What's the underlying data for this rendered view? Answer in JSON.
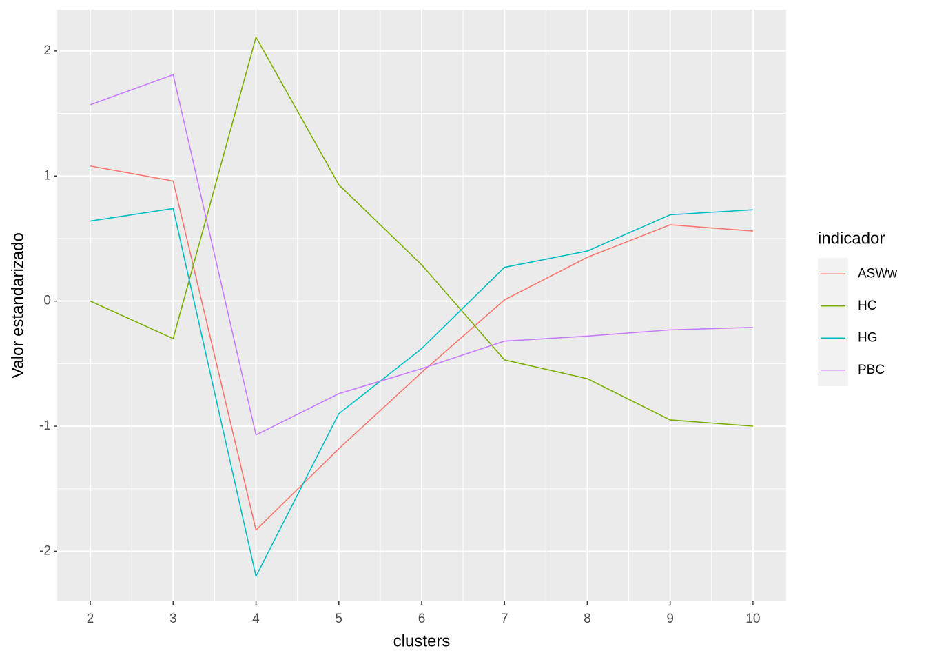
{
  "chart_data": {
    "type": "line",
    "x_label": "clusters",
    "y_label": "Valor estandarizado",
    "legend_title": "indicador",
    "x": [
      2,
      3,
      4,
      5,
      6,
      7,
      8,
      9,
      10
    ],
    "series": [
      {
        "name": "ASWw",
        "color": "#F8766D",
        "values": [
          1.08,
          0.96,
          -1.83,
          -1.18,
          -0.57,
          0.01,
          0.35,
          0.61,
          0.56
        ]
      },
      {
        "name": "HC",
        "color": "#7CAE00",
        "values": [
          0,
          -0.3,
          2.11,
          0.93,
          0.29,
          -0.47,
          -0.62,
          -0.95,
          -1.0
        ]
      },
      {
        "name": "HG",
        "color": "#00BFC4",
        "values": [
          0.64,
          0.74,
          -2.2,
          -0.9,
          -0.38,
          0.27,
          0.4,
          0.69,
          0.73
        ]
      },
      {
        "name": "PBC",
        "color": "#C77CFF",
        "values": [
          1.57,
          1.81,
          -1.07,
          -0.74,
          -0.54,
          -0.32,
          -0.28,
          -0.23,
          -0.21
        ]
      }
    ],
    "xlim": [
      1.6,
      10.4
    ],
    "ylim": [
      -2.4,
      2.33
    ],
    "xticks": [
      2,
      3,
      4,
      5,
      6,
      7,
      8,
      9,
      10
    ],
    "yticks": [
      -2,
      -1,
      0,
      1,
      2
    ],
    "xminor": [
      2.5,
      3.5,
      4.5,
      5.5,
      6.5,
      7.5,
      8.5,
      9.5
    ],
    "yminor": [
      -1.5,
      -0.5,
      0.5,
      1.5
    ],
    "grid": true,
    "legend": "right"
  }
}
